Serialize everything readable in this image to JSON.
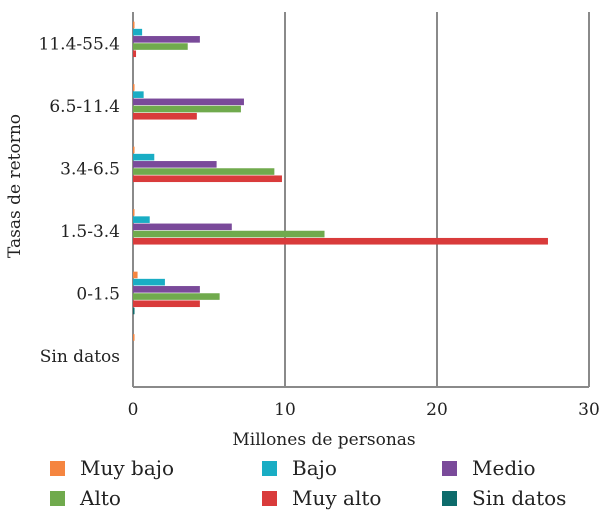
{
  "chart_data": {
    "type": "bar",
    "orientation": "horizontal",
    "xlabel": "Millones de personas",
    "ylabel": "Tasas de retorno",
    "xlim": [
      0,
      30
    ],
    "xticks": [
      0,
      10,
      20,
      30
    ],
    "grid": "vertical",
    "legend_position": "bottom",
    "categories": [
      "11.4-55.4",
      "6.5-11.4",
      "3.4-6.5",
      "1.5-3.4",
      "0-1.5",
      "Sin datos"
    ],
    "series": [
      {
        "name": "Muy bajo",
        "color": "#f58540",
        "values": [
          0.1,
          0.1,
          0.1,
          0.1,
          0.3,
          0.1
        ]
      },
      {
        "name": "Bajo",
        "color": "#19adc4",
        "values": [
          0.6,
          0.7,
          1.4,
          1.1,
          2.1,
          0
        ]
      },
      {
        "name": "Medio",
        "color": "#7a4a9a",
        "values": [
          4.4,
          7.3,
          5.5,
          6.5,
          4.4,
          0
        ]
      },
      {
        "name": "Alto",
        "color": "#70aa4d",
        "values": [
          3.6,
          7.1,
          9.3,
          12.6,
          5.7,
          0
        ]
      },
      {
        "name": "Muy alto",
        "color": "#d93b3b",
        "values": [
          0.2,
          4.2,
          9.8,
          27.3,
          4.4,
          0
        ]
      },
      {
        "name": "Sin datos",
        "color": "#0d6b6b",
        "values": [
          0,
          0,
          0,
          0,
          0.1,
          0
        ]
      }
    ]
  }
}
